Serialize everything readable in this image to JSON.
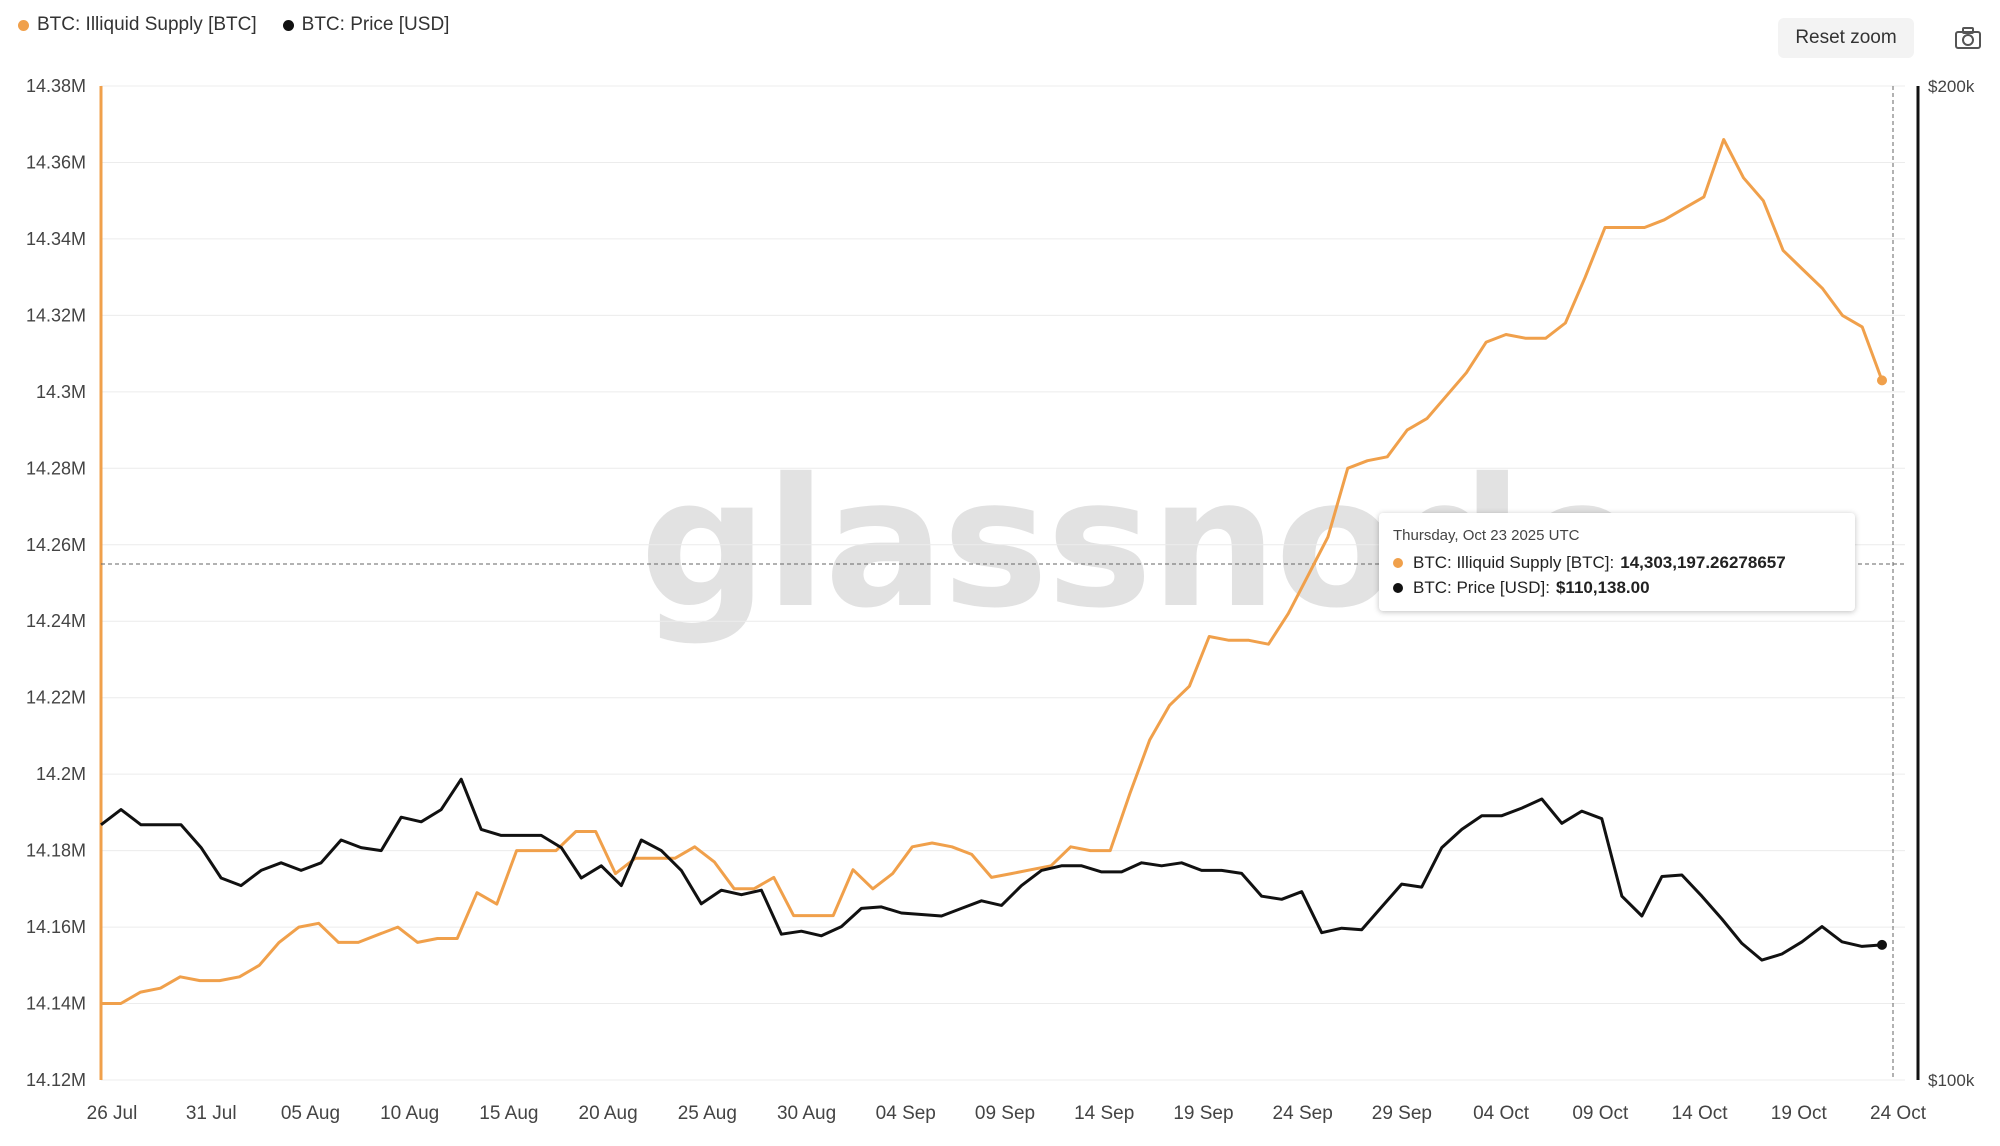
{
  "legend": {
    "series1_label": "BTC: Illiquid Supply [BTC]",
    "series2_label": "BTC: Price [USD]"
  },
  "toolbar": {
    "reset_zoom_label": "Reset zoom",
    "camera_icon": "camera-icon"
  },
  "watermark": "glassnode",
  "tooltip": {
    "date": "Thursday, Oct 23 2025 UTC",
    "series1_label": "BTC: Illiquid Supply [BTC]:",
    "series1_value": "14,303,197.26278657",
    "series2_label": "BTC: Price [USD]:",
    "series2_value": "$110,138.00"
  },
  "colors": {
    "supply": "#f0a04b",
    "price": "#1a1a1a",
    "grid": "#ececec"
  },
  "chart_data": {
    "type": "line",
    "x_tick_labels": [
      "26 Jul",
      "31 Jul",
      "05 Aug",
      "10 Aug",
      "15 Aug",
      "20 Aug",
      "25 Aug",
      "30 Aug",
      "04 Sep",
      "09 Sep",
      "14 Sep",
      "19 Sep",
      "24 Sep",
      "29 Sep",
      "04 Oct",
      "09 Oct",
      "14 Oct",
      "19 Oct",
      "24 Oct"
    ],
    "y_left_ticks": [
      "14.38M",
      "14.36M",
      "14.34M",
      "14.32M",
      "14.3M",
      "14.28M",
      "14.26M",
      "14.24M",
      "14.22M",
      "14.2M",
      "14.18M",
      "14.16M",
      "14.14M",
      "14.12M"
    ],
    "y_left_range": [
      14.12,
      14.38
    ],
    "y_right_ticks": [
      "$200k",
      "$100k"
    ],
    "grid": true,
    "legend_position": "top-left",
    "series": [
      {
        "name": "BTC: Illiquid Supply [BTC]",
        "axis": "left",
        "unit": "M BTC",
        "values": [
          14.14,
          14.14,
          14.143,
          14.144,
          14.147,
          14.146,
          14.146,
          14.147,
          14.15,
          14.156,
          14.16,
          14.161,
          14.156,
          14.156,
          14.158,
          14.16,
          14.156,
          14.157,
          14.157,
          14.169,
          14.166,
          14.18,
          14.18,
          14.18,
          14.185,
          14.185,
          14.174,
          14.178,
          14.178,
          14.178,
          14.181,
          14.177,
          14.17,
          14.17,
          14.173,
          14.163,
          14.163,
          14.163,
          14.175,
          14.17,
          14.174,
          14.181,
          14.182,
          14.181,
          14.179,
          14.173,
          14.174,
          14.175,
          14.176,
          14.181,
          14.18,
          14.18,
          14.195,
          14.209,
          14.218,
          14.223,
          14.236,
          14.235,
          14.235,
          14.234,
          14.242,
          14.252,
          14.262,
          14.28,
          14.282,
          14.283,
          14.29,
          14.293,
          14.299,
          14.305,
          14.313,
          14.315,
          14.314,
          14.314,
          14.318,
          14.33,
          14.343,
          14.343,
          14.343,
          14.345,
          14.348,
          14.351,
          14.366,
          14.356,
          14.35,
          14.337,
          14.332,
          14.327,
          14.32,
          14.317,
          14.303
        ]
      },
      {
        "name": "BTC: Price [USD]",
        "axis": "right",
        "unit": "k USD",
        "values": [
          118.0,
          119.0,
          118.0,
          118.0,
          118.0,
          116.5,
          114.5,
          114.0,
          115.0,
          115.5,
          115.0,
          115.5,
          117.0,
          116.5,
          116.3,
          118.5,
          118.2,
          119.0,
          121.0,
          117.7,
          117.3,
          117.3,
          117.3,
          116.5,
          114.5,
          115.3,
          114.0,
          117.0,
          116.3,
          115.0,
          112.8,
          113.7,
          113.4,
          113.7,
          110.8,
          111.0,
          110.7,
          111.3,
          112.5,
          112.6,
          112.2,
          112.1,
          112.0,
          112.5,
          113.0,
          112.7,
          114.0,
          115.0,
          115.3,
          115.3,
          114.9,
          114.9,
          115.5,
          115.3,
          115.5,
          115.0,
          115.0,
          114.8,
          113.3,
          113.1,
          113.6,
          110.9,
          111.2,
          111.1,
          112.6,
          114.1,
          113.9,
          116.5,
          117.7,
          118.6,
          118.6,
          119.1,
          119.7,
          118.1,
          118.9,
          118.4,
          113.3,
          112.0,
          114.6,
          114.7,
          113.3,
          111.8,
          110.2,
          109.1,
          109.5,
          110.3,
          111.3,
          110.3,
          110.0,
          110.1
        ]
      }
    ],
    "highlight": {
      "date": "Thursday, Oct 23 2025 UTC",
      "supply": 14303197.26278657,
      "price": 110138.0
    }
  }
}
